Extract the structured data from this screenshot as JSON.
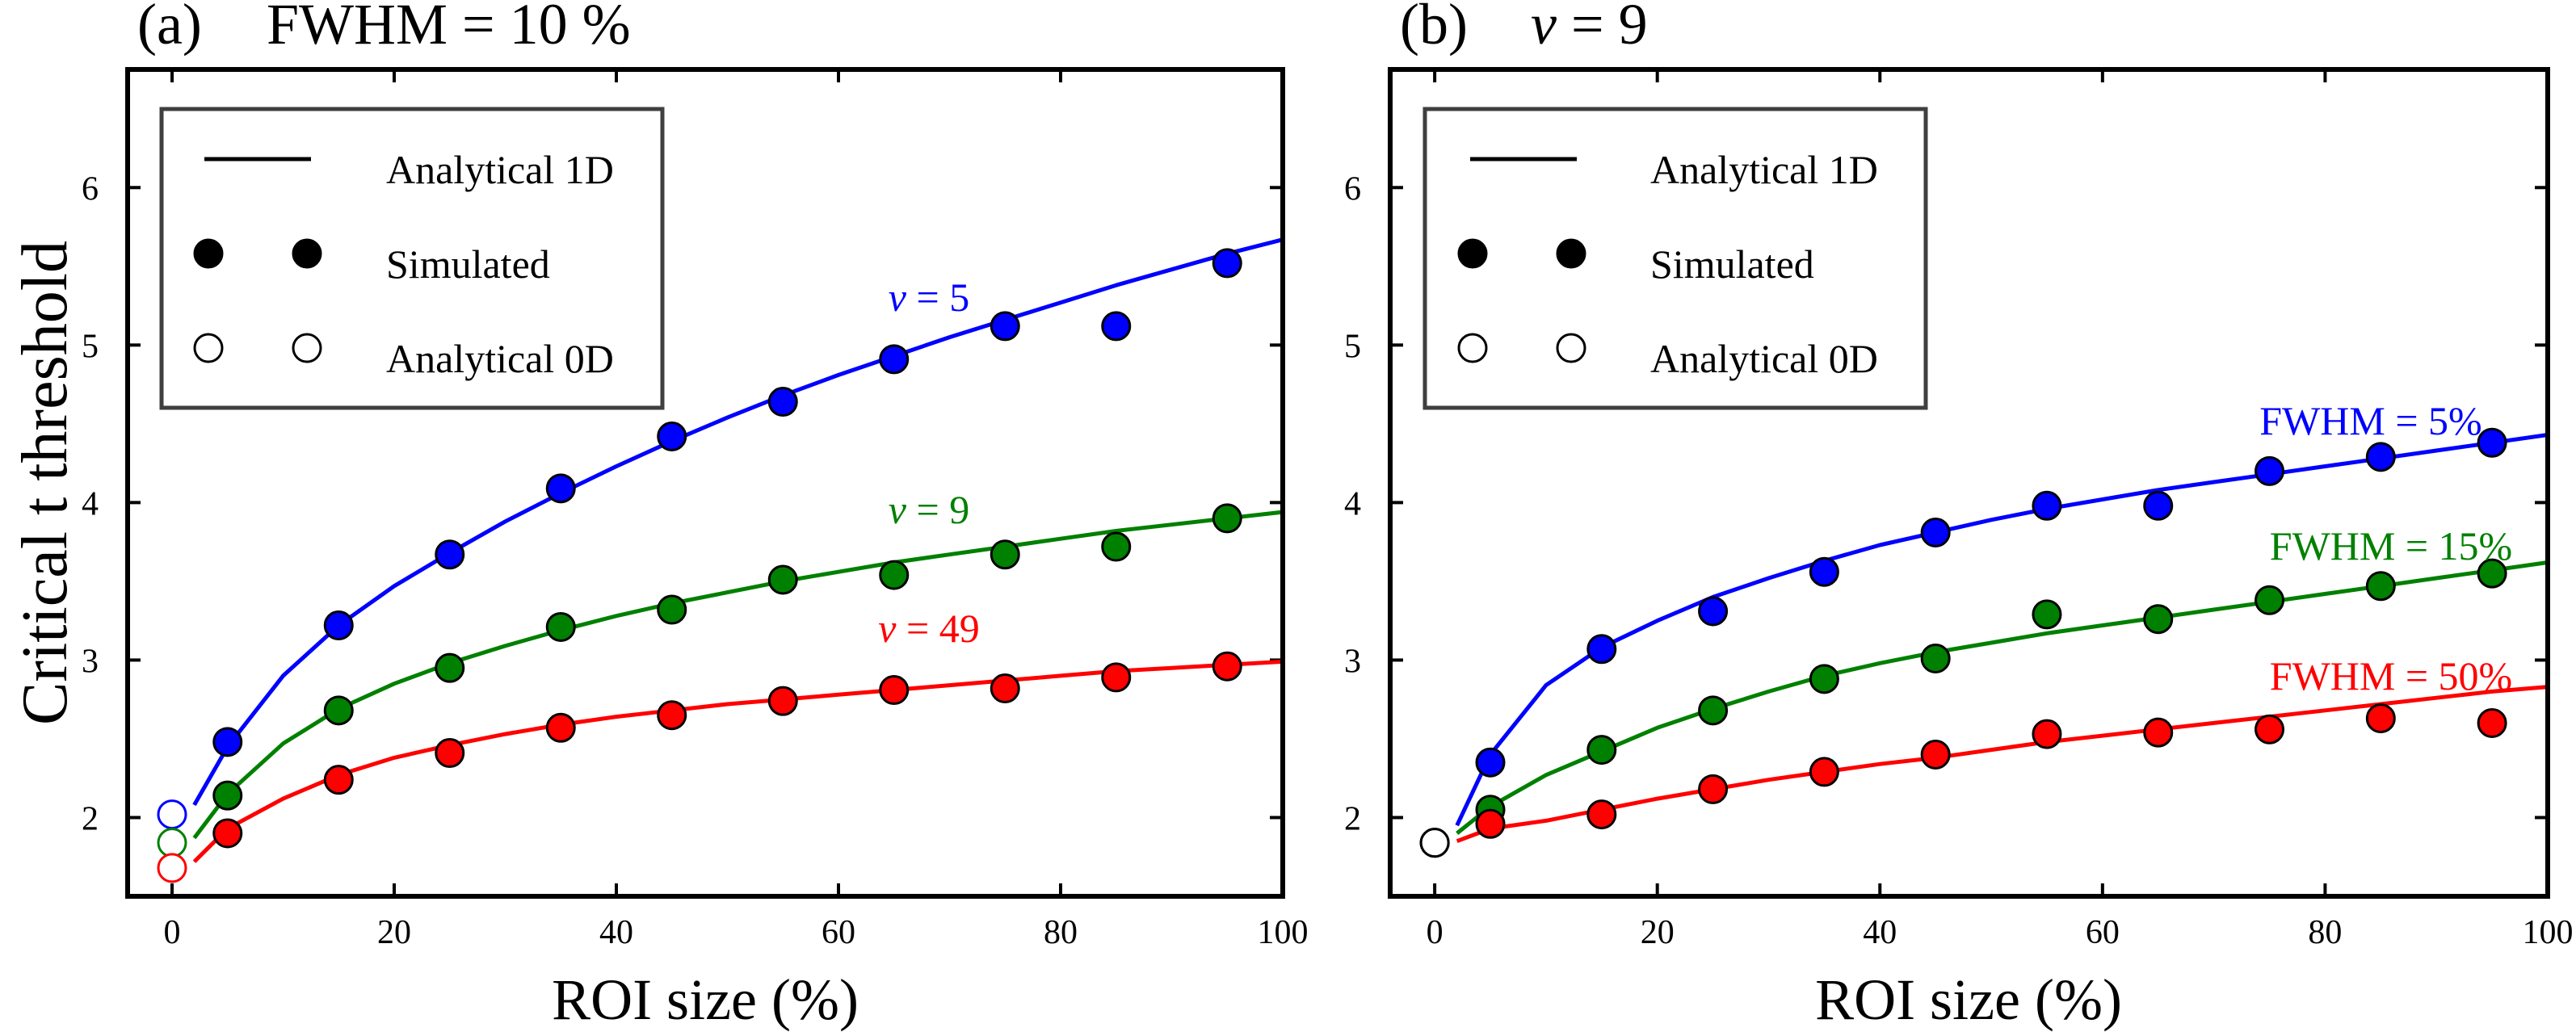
{
  "figure": {
    "panels": [
      {
        "id": "a",
        "panel_letter": "(a)",
        "condition": "FWHM = 10 %",
        "ylabel": "Critical t  threshold",
        "xlabel": "ROI size  (%)",
        "legend": {
          "line": "Analytical 1D",
          "filled": "Simulated",
          "open": "Analytical 0D"
        }
      },
      {
        "id": "b",
        "panel_letter": "(b)",
        "condition_symbol": "ν",
        "condition_value": " = 9",
        "xlabel": "ROI size  (%)",
        "legend": {
          "line": "Analytical 1D",
          "filled": "Simulated",
          "open": "Analytical 0D"
        }
      }
    ]
  },
  "chart_data": [
    {
      "type": "line",
      "title": "(a)   FWHM = 10 %",
      "xlabel": "ROI size  (%)",
      "ylabel": "Critical t  threshold",
      "xlim": [
        -4,
        100
      ],
      "ylim": [
        1.5,
        6.75
      ],
      "xticks": [
        0,
        20,
        40,
        60,
        80,
        100
      ],
      "yticks": [
        2,
        3,
        4,
        5,
        6
      ],
      "grid": false,
      "legend_position": "top-left",
      "series": [
        {
          "label_symbol": "ν",
          "label_value": " = 5",
          "color": "#0000ff",
          "curve_x": [
            2,
            5,
            10,
            15,
            20,
            25,
            30,
            35,
            40,
            45,
            50,
            55,
            60,
            65,
            70,
            75,
            80,
            85,
            90,
            95,
            100
          ],
          "curve_y": [
            2.08,
            2.45,
            2.9,
            3.22,
            3.47,
            3.68,
            3.88,
            4.06,
            4.23,
            4.39,
            4.54,
            4.68,
            4.81,
            4.93,
            5.05,
            5.16,
            5.27,
            5.38,
            5.48,
            5.58,
            5.67
          ],
          "simulated_x": [
            5,
            15,
            25,
            35,
            45,
            55,
            65,
            75,
            85,
            95
          ],
          "simulated_y": [
            2.48,
            3.22,
            3.67,
            4.09,
            4.42,
            4.64,
            4.91,
            5.12,
            5.12,
            5.52
          ],
          "analytical_0d": 2.02
        },
        {
          "label_symbol": "ν",
          "label_value": " = 9",
          "color": "#008000",
          "curve_x": [
            2,
            5,
            10,
            15,
            20,
            25,
            30,
            35,
            40,
            45,
            50,
            55,
            60,
            65,
            70,
            75,
            80,
            85,
            90,
            95,
            100
          ],
          "curve_y": [
            1.87,
            2.15,
            2.47,
            2.69,
            2.85,
            2.98,
            3.09,
            3.19,
            3.28,
            3.36,
            3.43,
            3.5,
            3.56,
            3.62,
            3.67,
            3.72,
            3.77,
            3.82,
            3.86,
            3.9,
            3.94
          ],
          "simulated_x": [
            5,
            15,
            25,
            35,
            45,
            55,
            65,
            75,
            85,
            95
          ],
          "simulated_y": [
            2.14,
            2.68,
            2.95,
            3.21,
            3.32,
            3.51,
            3.54,
            3.67,
            3.72,
            3.9
          ],
          "analytical_0d": 1.84
        },
        {
          "label_symbol": "ν",
          "label_value": " = 49",
          "color": "#ff0000",
          "curve_x": [
            2,
            5,
            10,
            15,
            20,
            25,
            30,
            35,
            40,
            45,
            50,
            55,
            60,
            65,
            70,
            75,
            80,
            85,
            90,
            95,
            100
          ],
          "curve_y": [
            1.72,
            1.93,
            2.12,
            2.27,
            2.38,
            2.46,
            2.53,
            2.59,
            2.64,
            2.68,
            2.72,
            2.75,
            2.78,
            2.81,
            2.84,
            2.87,
            2.9,
            2.93,
            2.95,
            2.97,
            2.99
          ],
          "simulated_x": [
            5,
            15,
            25,
            35,
            45,
            55,
            65,
            75,
            85,
            95
          ],
          "simulated_y": [
            1.9,
            2.24,
            2.41,
            2.57,
            2.65,
            2.74,
            2.81,
            2.82,
            2.89,
            2.96
          ],
          "analytical_0d": 1.68
        }
      ]
    },
    {
      "type": "line",
      "title": "(b)   ν = 9",
      "xlabel": "ROI size  (%)",
      "ylabel": "",
      "xlim": [
        -4,
        100
      ],
      "ylim": [
        1.5,
        6.75
      ],
      "xticks": [
        0,
        20,
        40,
        60,
        80,
        100
      ],
      "yticks": [
        2,
        3,
        4,
        5,
        6
      ],
      "grid": false,
      "legend_position": "top-left",
      "series": [
        {
          "label": "FWHM = 5%",
          "color": "#0000ff",
          "curve_x": [
            2,
            5,
            10,
            15,
            20,
            25,
            30,
            35,
            40,
            45,
            50,
            55,
            60,
            65,
            70,
            75,
            80,
            85,
            90,
            95,
            100
          ],
          "curve_y": [
            1.95,
            2.4,
            2.84,
            3.08,
            3.25,
            3.4,
            3.52,
            3.63,
            3.73,
            3.81,
            3.89,
            3.96,
            4.02,
            4.08,
            4.13,
            4.18,
            4.23,
            4.28,
            4.33,
            4.38,
            4.43
          ],
          "simulated_x": [
            5,
            15,
            25,
            35,
            45,
            55,
            65,
            75,
            85,
            95
          ],
          "simulated_y": [
            2.35,
            3.07,
            3.31,
            3.56,
            3.81,
            3.98,
            3.98,
            4.2,
            4.29,
            4.38
          ],
          "analytical_0d": 1.84
        },
        {
          "label": "FWHM = 15%",
          "color": "#008000",
          "curve_x": [
            2,
            5,
            10,
            15,
            20,
            25,
            30,
            35,
            40,
            45,
            50,
            55,
            60,
            65,
            70,
            75,
            80,
            85,
            90,
            95,
            100
          ],
          "curve_y": [
            1.9,
            2.07,
            2.27,
            2.42,
            2.57,
            2.69,
            2.8,
            2.9,
            2.98,
            3.05,
            3.11,
            3.17,
            3.22,
            3.27,
            3.32,
            3.37,
            3.42,
            3.47,
            3.52,
            3.57,
            3.62
          ],
          "simulated_x": [
            5,
            15,
            25,
            35,
            45,
            55,
            65,
            75,
            85,
            95
          ],
          "simulated_y": [
            2.05,
            2.43,
            2.68,
            2.88,
            3.01,
            3.29,
            3.26,
            3.38,
            3.47,
            3.55
          ],
          "analytical_0d": 1.84
        },
        {
          "label": "FWHM = 50%",
          "color": "#ff0000",
          "curve_x": [
            2,
            5,
            10,
            15,
            20,
            25,
            30,
            35,
            40,
            45,
            50,
            55,
            60,
            65,
            70,
            75,
            80,
            85,
            90,
            95,
            100
          ],
          "curve_y": [
            1.85,
            1.93,
            1.98,
            2.05,
            2.12,
            2.18,
            2.24,
            2.29,
            2.34,
            2.38,
            2.43,
            2.48,
            2.52,
            2.56,
            2.6,
            2.64,
            2.68,
            2.72,
            2.76,
            2.8,
            2.83
          ],
          "simulated_x": [
            5,
            15,
            25,
            35,
            45,
            55,
            65,
            75,
            85,
            95
          ],
          "simulated_y": [
            1.96,
            2.02,
            2.18,
            2.29,
            2.4,
            2.53,
            2.54,
            2.56,
            2.63,
            2.6
          ],
          "analytical_0d": 1.84
        }
      ]
    }
  ]
}
